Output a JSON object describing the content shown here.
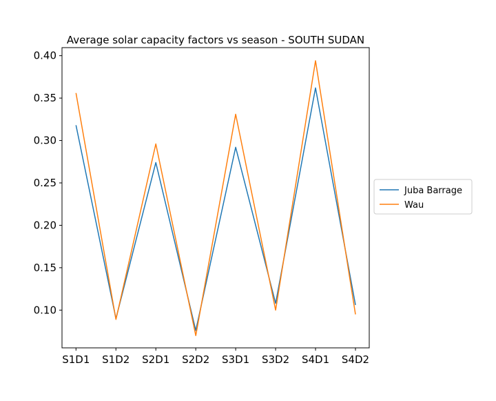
{
  "chart_data": {
    "type": "line",
    "title": "Average solar capacity factors vs season - SOUTH SUDAN",
    "xlabel": "",
    "ylabel": "",
    "categories": [
      "S1D1",
      "S1D2",
      "S2D1",
      "S2D2",
      "S3D1",
      "S3D2",
      "S4D1",
      "S4D2"
    ],
    "series": [
      {
        "name": "Juba Barrage",
        "color": "#1f77b4",
        "values": [
          0.318,
          0.09,
          0.274,
          0.076,
          0.292,
          0.108,
          0.362,
          0.106
        ]
      },
      {
        "name": "Wau",
        "color": "#ff7f0e",
        "values": [
          0.356,
          0.089,
          0.296,
          0.07,
          0.331,
          0.1,
          0.394,
          0.095
        ]
      }
    ],
    "yticks": [
      "0.10",
      "0.15",
      "0.20",
      "0.25",
      "0.30",
      "0.35",
      "0.40"
    ],
    "ylim": [
      0.0555,
      0.4095
    ],
    "grid": false,
    "legend": "center-right, outside plot"
  }
}
